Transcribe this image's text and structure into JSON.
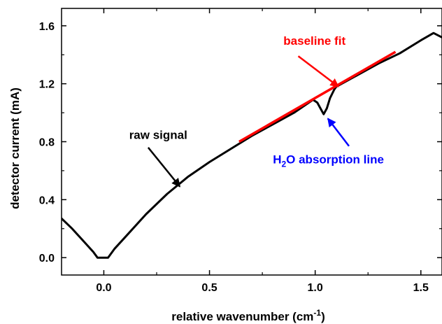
{
  "chart_data": {
    "type": "line",
    "xlabel": "relative wavenumber (cm",
    "xlabel_sup": "-1",
    "xlabel_end": ")",
    "ylabel": "detector current (mA)",
    "xlim": [
      -0.2,
      1.6
    ],
    "ylim": [
      -0.12,
      1.72
    ],
    "xticks": [
      {
        "value": 0.0,
        "label": "0.0"
      },
      {
        "value": 0.5,
        "label": "0.5"
      },
      {
        "value": 1.0,
        "label": "1.0"
      },
      {
        "value": 1.5,
        "label": "1.5"
      }
    ],
    "yticks": [
      {
        "value": 0.0,
        "label": "0.0"
      },
      {
        "value": 0.4,
        "label": "0.4"
      },
      {
        "value": 0.8,
        "label": "0.8"
      },
      {
        "value": 1.2,
        "label": "1.2"
      },
      {
        "value": 1.6,
        "label": "1.6"
      }
    ],
    "grid": false,
    "series": [
      {
        "color": "#000000",
        "x": [
          -0.2,
          -0.15,
          -0.1,
          -0.05,
          -0.03,
          0.02,
          0.05,
          0.1,
          0.2,
          0.3,
          0.4,
          0.5,
          0.6,
          0.7,
          0.8,
          0.9,
          0.95,
          0.99,
          1.01,
          1.025,
          1.04,
          1.055,
          1.07,
          1.09,
          1.1,
          1.2,
          1.3,
          1.4,
          1.5,
          1.56,
          1.6
        ],
        "y": [
          0.27,
          0.2,
          0.12,
          0.04,
          0.0,
          0.0,
          0.06,
          0.14,
          0.3,
          0.44,
          0.56,
          0.66,
          0.75,
          0.84,
          0.92,
          1.0,
          1.05,
          1.09,
          1.07,
          1.03,
          0.99,
          1.03,
          1.1,
          1.16,
          1.18,
          1.26,
          1.34,
          1.41,
          1.5,
          1.55,
          1.52
        ]
      },
      {
        "color": "#ff0000",
        "x": [
          0.64,
          1.38
        ],
        "y": [
          0.8,
          1.42
        ]
      }
    ],
    "annotations": [
      {
        "text": "baseline fit",
        "color": "#ff0000",
        "x": 0.85,
        "y": 1.47,
        "arrow_from": [
          0.92,
          1.39
        ],
        "arrow_to": [
          1.11,
          1.18
        ]
      },
      {
        "text": "raw signal",
        "color": "#000000",
        "x": 0.12,
        "y": 0.82,
        "arrow_from": [
          0.21,
          0.76
        ],
        "arrow_to": [
          0.36,
          0.49
        ]
      },
      {
        "text_pre": "H",
        "text_sub": "2",
        "text_post": "O absorption line",
        "color": "#0000ff",
        "x": 0.8,
        "y": 0.65,
        "arrow_from": [
          1.16,
          0.77
        ],
        "arrow_to": [
          1.06,
          0.96
        ]
      }
    ]
  }
}
